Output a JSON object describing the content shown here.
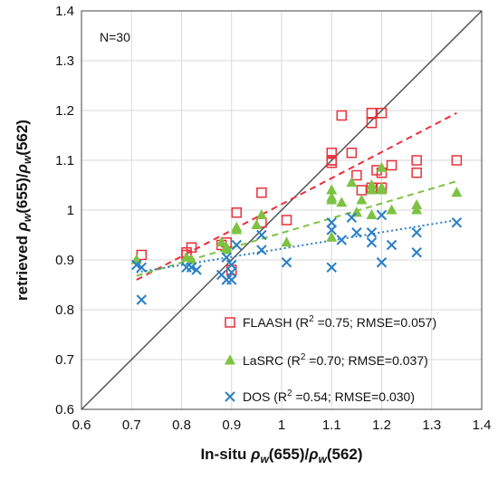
{
  "chart_data": {
    "type": "scatter",
    "title": "",
    "xlabel": {
      "prefix": "In-situ ",
      "rho1": "ρ",
      "sub1": "w",
      "mid": "(655)/",
      "rho2": "ρ",
      "sub2": "w",
      "suffix": "(562)"
    },
    "ylabel": {
      "prefix": "retrieved ",
      "rho1": "ρ",
      "sub1": "w",
      "mid": "(655)/",
      "rho2": "ρ",
      "sub2": "w",
      "suffix": "(562)"
    },
    "xlim": [
      0.6,
      1.4
    ],
    "ylim": [
      0.6,
      1.4
    ],
    "xticks": [
      "0.6",
      "0.7",
      "0.8",
      "0.9",
      "1",
      "1.1",
      "1.2",
      "1.3",
      "1.4"
    ],
    "yticks": [
      "0.6",
      "0.7",
      "0.8",
      "0.9",
      "1",
      "1.1",
      "1.2",
      "1.3",
      "1.4"
    ],
    "grid": true,
    "annotation": "N=30",
    "one_to_one_line": true,
    "legend_position": "bottom-right",
    "series": [
      {
        "name": "FLAASH",
        "legend_stats": {
          "r2_label": "R",
          "r2_sup": "2",
          "r2_value": " =0.75; RMSE=0.057)"
        },
        "legend_prefix": "FLAASH (",
        "marker": "square-open",
        "color": "#e8303a",
        "trend": [
          [
            0.71,
            0.86
          ],
          [
            1.35,
            1.195
          ]
        ],
        "x": [
          0.72,
          0.81,
          0.82,
          0.88,
          0.9,
          0.91,
          0.96,
          0.96,
          1.01,
          1.1,
          1.1,
          1.1,
          1.12,
          1.14,
          1.15,
          1.18,
          1.18,
          1.2,
          1.2,
          1.19,
          1.22,
          1.27,
          1.27,
          1.35,
          1.1,
          1.16,
          0.89,
          0.81,
          1.2,
          1.18
        ],
        "y": [
          0.91,
          0.91,
          0.925,
          0.93,
          0.88,
          0.995,
          1.035,
          0.975,
          0.98,
          1.115,
          1.095,
          1.1,
          1.19,
          1.115,
          1.07,
          1.195,
          1.175,
          1.195,
          1.045,
          1.08,
          1.09,
          1.1,
          1.075,
          1.1,
          1.1,
          1.04,
          0.935,
          0.915,
          1.075,
          1.045
        ]
      },
      {
        "name": "LaSRC",
        "legend_stats": {
          "r2_label": "R",
          "r2_sup": "2",
          "r2_value": " =0.70; RMSE=0.037)"
        },
        "legend_prefix": "LaSRC (",
        "marker": "triangle",
        "color": "#7dc242",
        "trend": [
          [
            0.71,
            0.868
          ],
          [
            1.35,
            1.058
          ]
        ],
        "x": [
          0.71,
          0.81,
          0.82,
          0.88,
          0.89,
          0.91,
          0.95,
          0.96,
          1.01,
          1.1,
          1.1,
          1.1,
          1.12,
          1.14,
          1.15,
          1.18,
          1.18,
          1.2,
          1.2,
          1.22,
          1.27,
          1.27,
          1.35,
          1.1,
          1.16,
          1.18,
          0.89,
          0.91,
          1.15,
          1.2
        ],
        "y": [
          0.9,
          0.905,
          0.9,
          0.935,
          0.925,
          0.965,
          0.97,
          0.99,
          0.935,
          1.04,
          1.02,
          0.945,
          1.015,
          1.055,
          0.995,
          1.05,
          1.04,
          1.085,
          1.045,
          1.0,
          1.0,
          1.01,
          1.035,
          1.025,
          1.02,
          0.99,
          0.92,
          0.96,
          0.995,
          1.04
        ]
      },
      {
        "name": "DOS",
        "legend_stats": {
          "r2_label": "R",
          "r2_sup": "2",
          "r2_value": " =0.54; RMSE=0.030)"
        },
        "legend_prefix": "DOS (",
        "marker": "x",
        "color": "#2a7fc4",
        "trend": [
          [
            0.71,
            0.875
          ],
          [
            1.35,
            0.98
          ]
        ],
        "x": [
          0.71,
          0.72,
          0.72,
          0.81,
          0.82,
          0.83,
          0.88,
          0.89,
          0.89,
          0.9,
          0.9,
          0.91,
          0.96,
          0.96,
          1.01,
          1.1,
          1.1,
          1.1,
          1.12,
          1.14,
          1.15,
          1.18,
          1.18,
          1.2,
          1.2,
          1.22,
          1.27,
          1.27,
          1.35,
          0.9
        ],
        "y": [
          0.89,
          0.885,
          0.82,
          0.885,
          0.885,
          0.88,
          0.87,
          0.905,
          0.86,
          0.86,
          0.875,
          0.93,
          0.95,
          0.92,
          0.895,
          0.975,
          0.96,
          0.885,
          0.94,
          0.985,
          0.955,
          0.935,
          0.955,
          0.99,
          0.895,
          0.93,
          0.955,
          0.915,
          0.975,
          0.89
        ]
      }
    ]
  }
}
